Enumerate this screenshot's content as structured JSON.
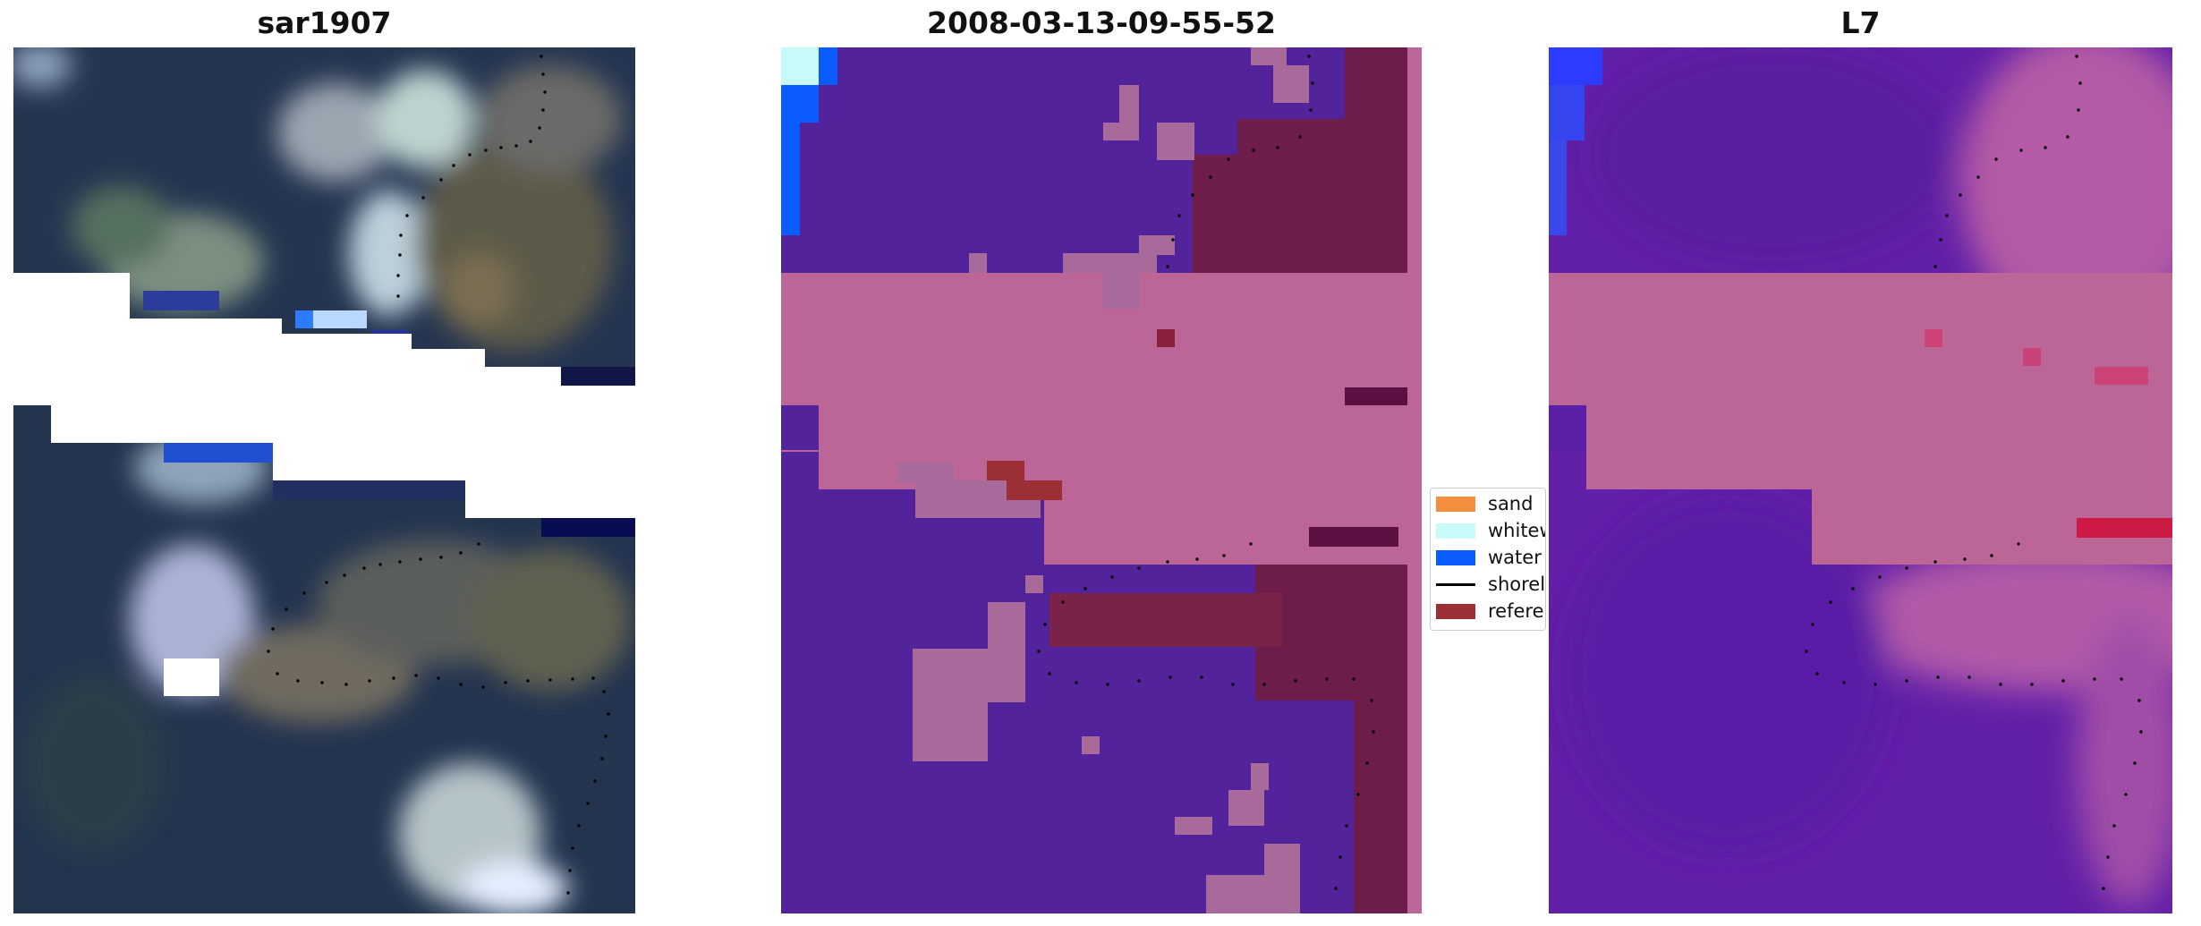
{
  "panels": [
    {
      "title": "sar1907"
    },
    {
      "title": "2008-03-13-09-55-52"
    },
    {
      "title": "L7"
    }
  ],
  "legend": {
    "items": [
      {
        "label": "sand",
        "color": "#f28e3c",
        "kind": "patch"
      },
      {
        "label": "whitewater",
        "color": "#c8fafa",
        "kind": "patch"
      },
      {
        "label": "water",
        "color": "#0a5cff",
        "kind": "patch"
      },
      {
        "label": "shoreline",
        "color": "#000000",
        "kind": "line"
      },
      {
        "label": "reference",
        "color": "#9b2f35",
        "kind": "patch"
      }
    ]
  },
  "colors": {
    "dark_ocean": "#243550",
    "purple_class": "#53239b",
    "pink_mask": "#bb6696",
    "maroon": "#6e1d4a",
    "violet_overlay": "#6a1eae"
  }
}
